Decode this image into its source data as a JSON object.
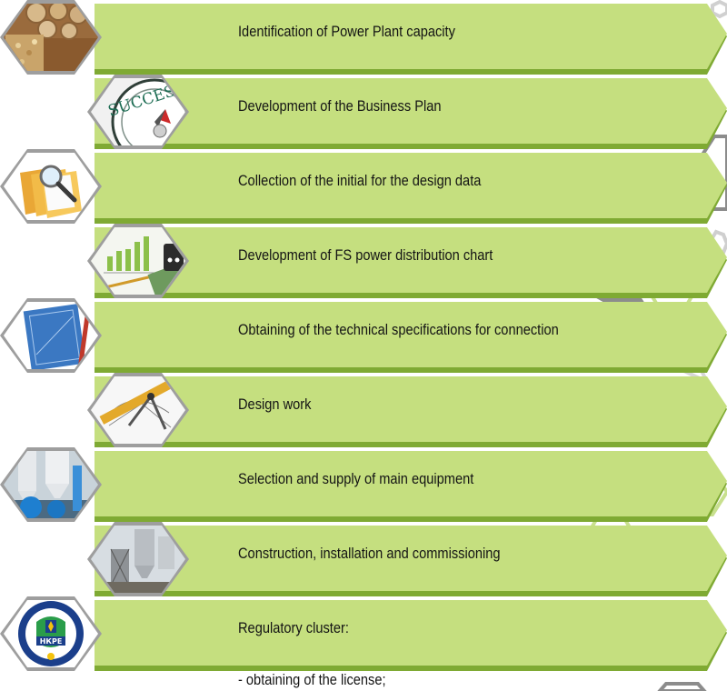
{
  "colors": {
    "banner": "#c5df7f",
    "banner_shadow": "#7faa33",
    "hex_frame": "#9e9e9e",
    "deco_green": "#c8e08e",
    "deco_grey": "#8c8c8c"
  },
  "steps": [
    {
      "label": "Identification of Power Plant capacity",
      "icon": "biomass-wood-icon"
    },
    {
      "label": "Development of the Business Plan",
      "icon": "success-compass-icon"
    },
    {
      "label": "Collection of the initial for the design data",
      "icon": "folders-magnifier-icon"
    },
    {
      "label": "Development of FS power distribution chart",
      "icon": "chart-calculator-icon"
    },
    {
      "label": "Obtaining of the technical specifications for connection",
      "icon": "blueprint-pencil-icon"
    },
    {
      "label": "Design work",
      "icon": "drafting-tools-icon"
    },
    {
      "label": "Selection and supply of main equipment",
      "icon": "industrial-equipment-icon"
    },
    {
      "label": "Construction, installation and commissioning",
      "icon": "construction-site-icon"
    },
    {
      "label": "Regulatory cluster:",
      "icon": "regulator-emblem-icon"
    }
  ],
  "sub_items": [
    "- obtaining of the license;"
  ],
  "emblem_text": "НКРЕ"
}
